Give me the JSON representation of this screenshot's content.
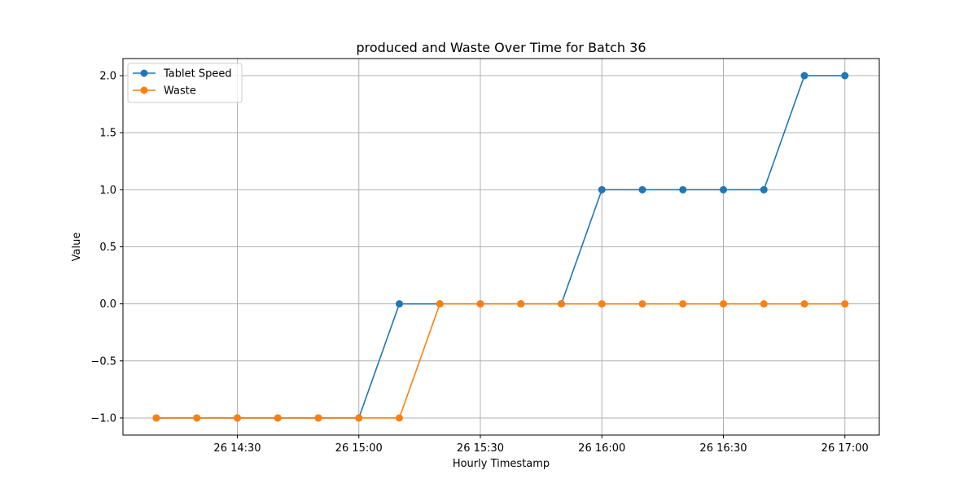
{
  "chart_data": {
    "type": "line",
    "title": "produced and Waste Over Time for Batch 36",
    "xlabel": "Hourly Timestamp",
    "ylabel": "Value",
    "x": [
      "14:10",
      "14:20",
      "14:30",
      "14:40",
      "14:50",
      "15:00",
      "15:10",
      "15:20",
      "15:30",
      "15:40",
      "15:50",
      "16:00",
      "16:10",
      "16:20",
      "16:30",
      "16:40",
      "16:50",
      "17:00"
    ],
    "x_ticks": [
      "26 14:30",
      "26 15:00",
      "26 15:30",
      "26 16:00",
      "26 16:30",
      "26 17:00"
    ],
    "y_ticks": [
      "−1.0",
      "−0.5",
      "0.0",
      "0.5",
      "1.0",
      "1.5",
      "2.0"
    ],
    "ylim": [
      -1.15,
      2.15
    ],
    "grid": true,
    "legend_position": "top-left",
    "series": [
      {
        "name": "Tablet Speed",
        "color": "#1f77b4",
        "x": [
          "14:10",
          "14:20",
          "14:30",
          "14:40",
          "14:50",
          "15:00",
          "15:10",
          "15:20",
          "15:30",
          "15:40",
          "15:50",
          "16:00",
          "16:10",
          "16:20",
          "16:30",
          "16:40",
          "16:50",
          "17:00"
        ],
        "values": [
          -1,
          -1,
          -1,
          -1,
          -1,
          -1,
          0,
          0,
          0,
          0,
          0,
          1,
          1,
          1,
          1,
          1,
          2,
          2
        ]
      },
      {
        "name": "Waste",
        "color": "#ff7f0e",
        "x": [
          "14:10",
          "14:20",
          "14:30",
          "14:40",
          "14:50",
          "15:00",
          "15:10",
          "15:20",
          "15:30",
          "15:40",
          "15:50",
          "16:00",
          "16:10",
          "16:20",
          "16:30",
          "16:40",
          "16:50",
          "17:00"
        ],
        "values": [
          -1,
          -1,
          -1,
          -1,
          -1,
          -1,
          -1,
          0,
          0,
          0,
          0,
          0,
          0,
          0,
          0,
          0,
          0,
          0
        ]
      }
    ]
  }
}
